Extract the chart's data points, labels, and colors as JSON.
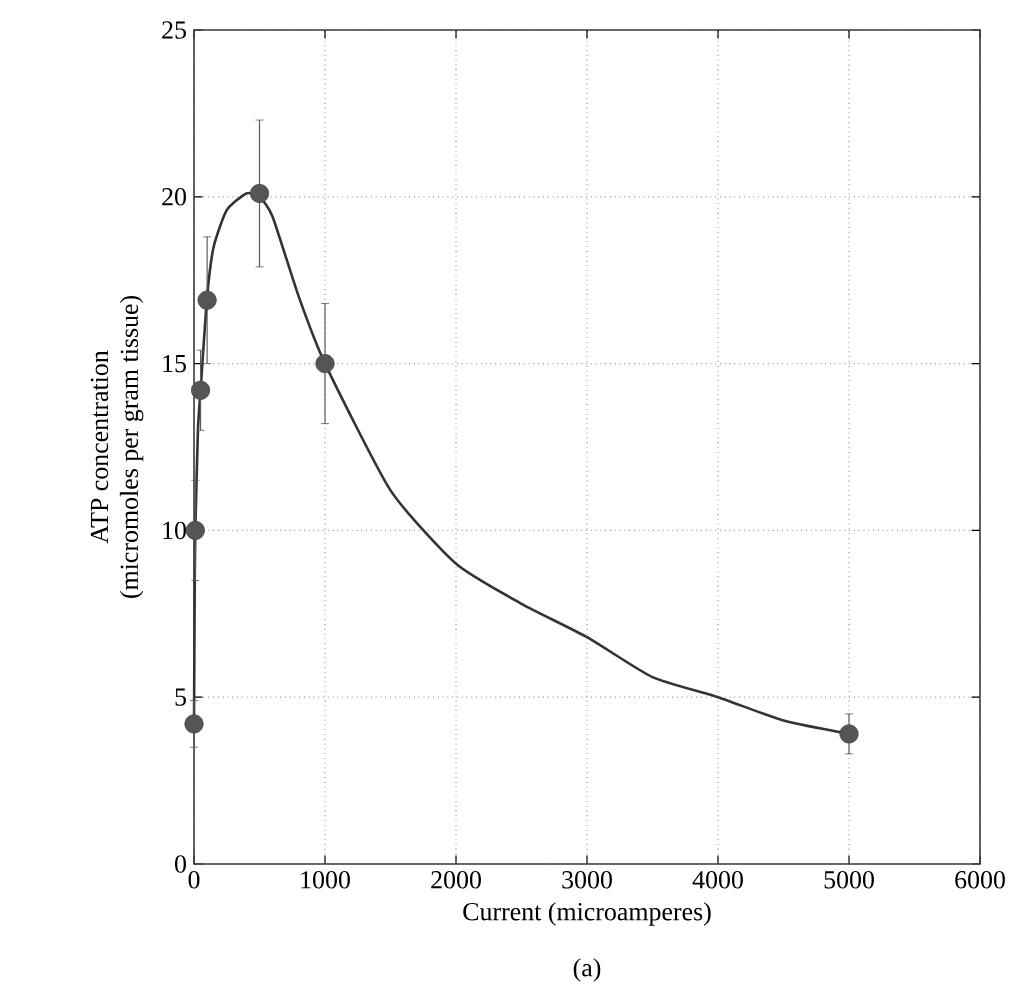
{
  "chart_data": {
    "type": "scatter",
    "xlabel": "Current (microamperes)",
    "ylabel": "ATP concentration\n(micromoles per gram tissue)",
    "annotations": [
      "(a)"
    ],
    "xlim": [
      0,
      6000
    ],
    "ylim": [
      0,
      25
    ],
    "xticks": [
      0,
      1000,
      2000,
      3000,
      4000,
      5000,
      6000
    ],
    "yticks": [
      0,
      5,
      10,
      15,
      20,
      25
    ],
    "grid": true,
    "series": [
      {
        "type": "line",
        "color": "#333333",
        "line_style": "solid",
        "marker": "none",
        "x": [
          0,
          5,
          10,
          30,
          50,
          100,
          150,
          250,
          400,
          500,
          600,
          800,
          1000,
          1500,
          2000,
          2500,
          3000,
          3500,
          4000,
          4500,
          5000
        ],
        "values": [
          4.2,
          8,
          10,
          13,
          14.2,
          17,
          18.5,
          19.6,
          20.1,
          20,
          19.4,
          17,
          15,
          11.2,
          9,
          7.8,
          6.8,
          5.6,
          5,
          4.3,
          3.9
        ]
      },
      {
        "color": "#555555",
        "marker": "circle",
        "x": [
          0,
          10,
          50,
          100,
          500,
          1000,
          5000
        ],
        "values": [
          4.2,
          10,
          14.2,
          16.9,
          20.1,
          15,
          3.9
        ],
        "errors": [
          0.7,
          1.5,
          1.2,
          1.9,
          2.2,
          1.8,
          0.6
        ]
      }
    ]
  }
}
